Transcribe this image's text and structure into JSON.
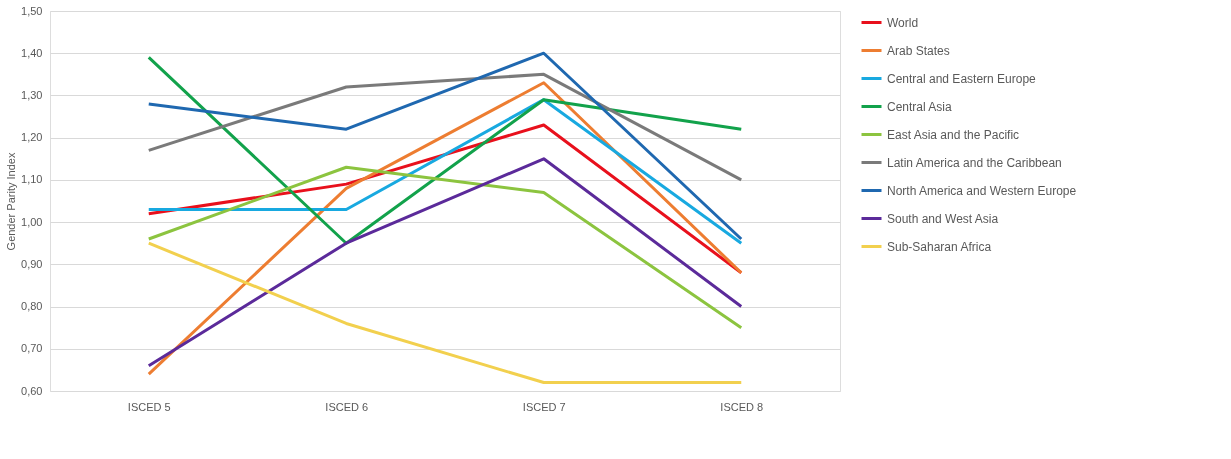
{
  "chart_data": {
    "type": "line",
    "ylabel": "Gender Parity Index",
    "categories": [
      "ISCED 5",
      "ISCED 6",
      "ISCED 7",
      "ISCED 8"
    ],
    "series": [
      {
        "name": "World",
        "color": "#e8101c",
        "values": [
          1.02,
          1.09,
          1.23,
          0.88
        ]
      },
      {
        "name": "Arab States",
        "color": "#ed7d31",
        "values": [
          0.64,
          1.08,
          1.33,
          0.88
        ]
      },
      {
        "name": "Central and Eastern Europe",
        "color": "#18a9e0",
        "values": [
          1.03,
          1.03,
          1.29,
          0.95
        ]
      },
      {
        "name": "Central Asia",
        "color": "#12a24b",
        "values": [
          1.39,
          0.95,
          1.29,
          1.22
        ]
      },
      {
        "name": "East Asia and the Pacific",
        "color": "#8cc43f",
        "values": [
          0.96,
          1.13,
          1.07,
          0.75
        ]
      },
      {
        "name": "Latin America and the Caribbean",
        "color": "#7a7a7a",
        "values": [
          1.17,
          1.32,
          1.35,
          1.1
        ]
      },
      {
        "name": "North America and Western Europe",
        "color": "#1f68b0",
        "values": [
          1.28,
          1.22,
          1.4,
          0.96
        ]
      },
      {
        "name": "South and West Asia",
        "color": "#5b2a9a",
        "values": [
          0.66,
          0.95,
          1.15,
          0.8
        ]
      },
      {
        "name": "Sub-Saharan Africa",
        "color": "#f2d04e",
        "values": [
          0.95,
          0.76,
          0.62,
          0.62
        ]
      }
    ],
    "ylim": [
      0.6,
      1.5
    ],
    "yticks": [
      {
        "value": 0.6,
        "label": "0,60"
      },
      {
        "value": 0.7,
        "label": "0,70"
      },
      {
        "value": 0.8,
        "label": "0,80"
      },
      {
        "value": 0.9,
        "label": "0,90"
      },
      {
        "value": 1.0,
        "label": "1,00"
      },
      {
        "value": 1.1,
        "label": "1,10"
      },
      {
        "value": 1.2,
        "label": "1,20"
      },
      {
        "value": 1.3,
        "label": "1,30"
      },
      {
        "value": 1.4,
        "label": "1,40"
      },
      {
        "value": 1.5,
        "label": "1,50"
      }
    ],
    "grid": "y",
    "legend": "right",
    "marker": "none",
    "line_style": "solid"
  }
}
